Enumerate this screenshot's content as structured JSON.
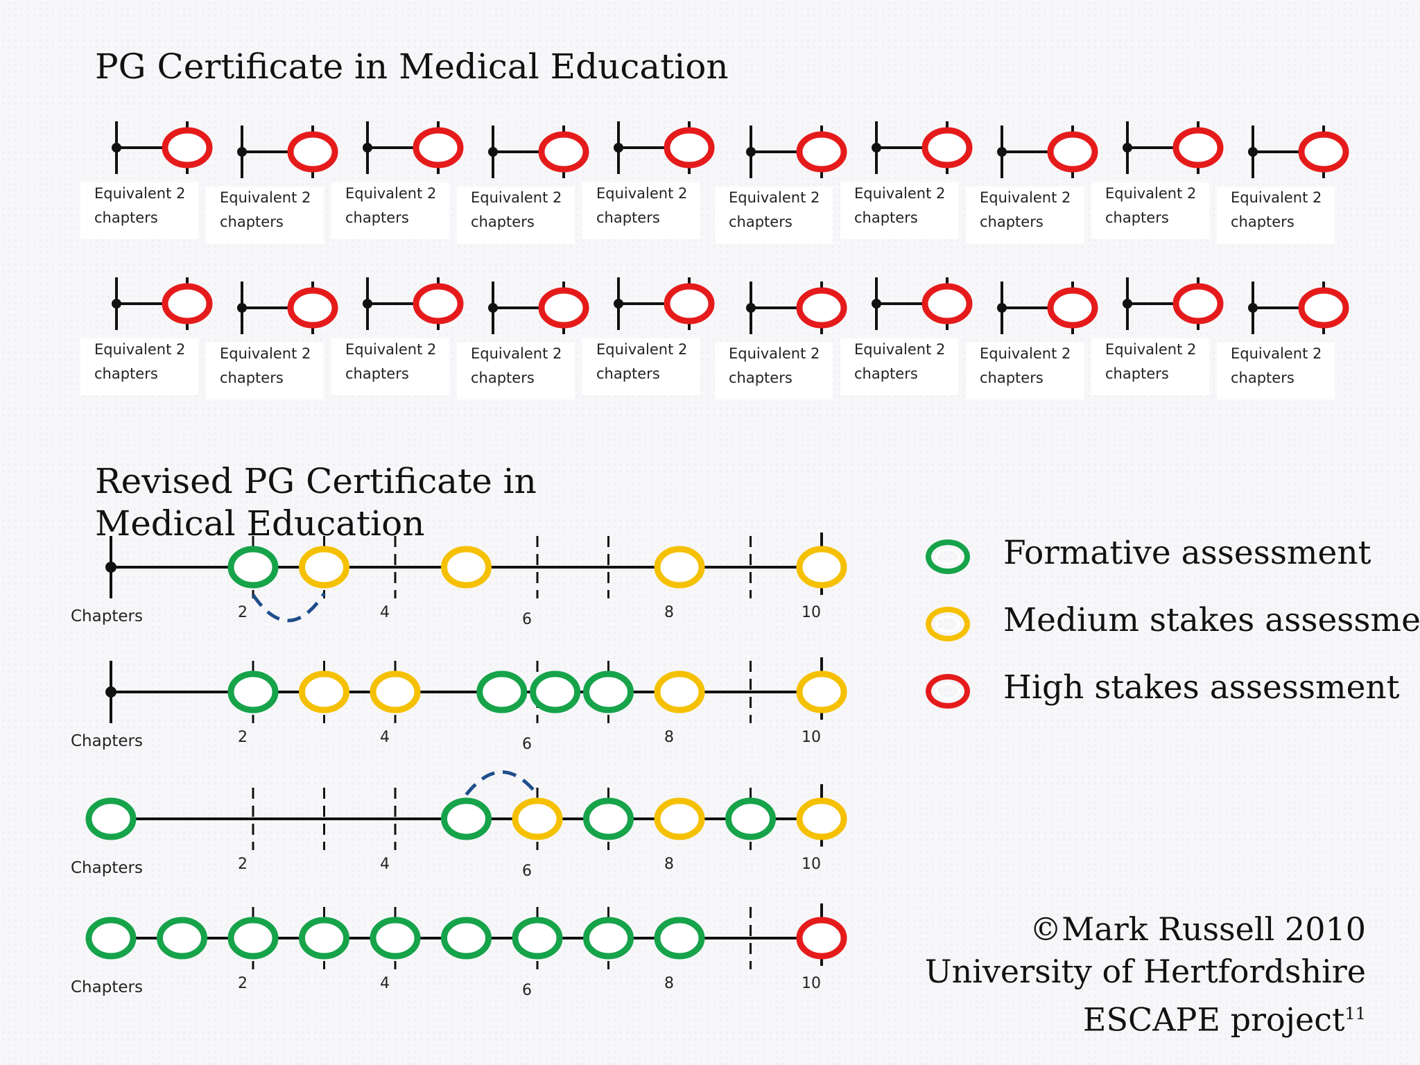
{
  "title_original": "PG Certificate in Medical Education",
  "title_revised": "Revised PG Certificate in Medical Education",
  "module_label_line1": "Equivalent 2",
  "module_label_line2": "chapters",
  "module_rows": 2,
  "modules_per_row": 10,
  "module_assessment": "high",
  "timeline_axis_label": "Chapters",
  "tick_labels": [
    "2",
    "4",
    "6",
    "8",
    "10"
  ],
  "timelines": [
    {
      "start_marker": "dot",
      "assessments": [
        {
          "chapter": 2,
          "type": "formative"
        },
        {
          "chapter": 3,
          "type": "medium"
        },
        {
          "chapter": 5,
          "type": "medium"
        },
        {
          "chapter": 8,
          "type": "medium"
        },
        {
          "chapter": 10,
          "type": "medium"
        }
      ],
      "feedback_arc": {
        "from": 2,
        "to": 3
      }
    },
    {
      "start_marker": "dot",
      "assessments": [
        {
          "chapter": 2,
          "type": "formative"
        },
        {
          "chapter": 3,
          "type": "medium"
        },
        {
          "chapter": 4,
          "type": "medium"
        },
        {
          "chapter": 5.5,
          "type": "formative"
        },
        {
          "chapter": 6.25,
          "type": "formative"
        },
        {
          "chapter": 7,
          "type": "formative"
        },
        {
          "chapter": 8,
          "type": "medium"
        },
        {
          "chapter": 10,
          "type": "medium"
        }
      ]
    },
    {
      "start_marker": "formative",
      "assessments": [
        {
          "chapter": 0,
          "type": "formative"
        },
        {
          "chapter": 5,
          "type": "formative"
        },
        {
          "chapter": 6,
          "type": "medium"
        },
        {
          "chapter": 7,
          "type": "formative"
        },
        {
          "chapter": 8,
          "type": "medium"
        },
        {
          "chapter": 9,
          "type": "formative"
        },
        {
          "chapter": 10,
          "type": "medium"
        }
      ],
      "feedback_arc": {
        "from": 5,
        "to": 6
      }
    },
    {
      "start_marker": "formative",
      "assessments": [
        {
          "chapter": 0,
          "type": "formative"
        },
        {
          "chapter": 1,
          "type": "formative"
        },
        {
          "chapter": 2,
          "type": "formative"
        },
        {
          "chapter": 3,
          "type": "formative"
        },
        {
          "chapter": 4,
          "type": "formative"
        },
        {
          "chapter": 5,
          "type": "formative"
        },
        {
          "chapter": 6,
          "type": "formative"
        },
        {
          "chapter": 7,
          "type": "formative"
        },
        {
          "chapter": 8,
          "type": "formative"
        },
        {
          "chapter": 10,
          "type": "high"
        }
      ]
    }
  ],
  "legend": [
    {
      "type": "formative",
      "label": "Formative assessment",
      "color": "#16a34a"
    },
    {
      "type": "medium",
      "label": "Medium stakes assessment",
      "color": "#f5c000"
    },
    {
      "type": "high",
      "label": "High stakes assessment",
      "color": "#e51b1b"
    }
  ],
  "credits": {
    "line1": "©Mark Russell 2010",
    "line2": "University of Hertfordshire",
    "line3": "ESCAPE project",
    "superscript": "11"
  },
  "colors": {
    "formative": "#16a34a",
    "medium": "#f5c000",
    "high": "#e51b1b",
    "arc": "#1f4e8c",
    "line": "#111111"
  }
}
